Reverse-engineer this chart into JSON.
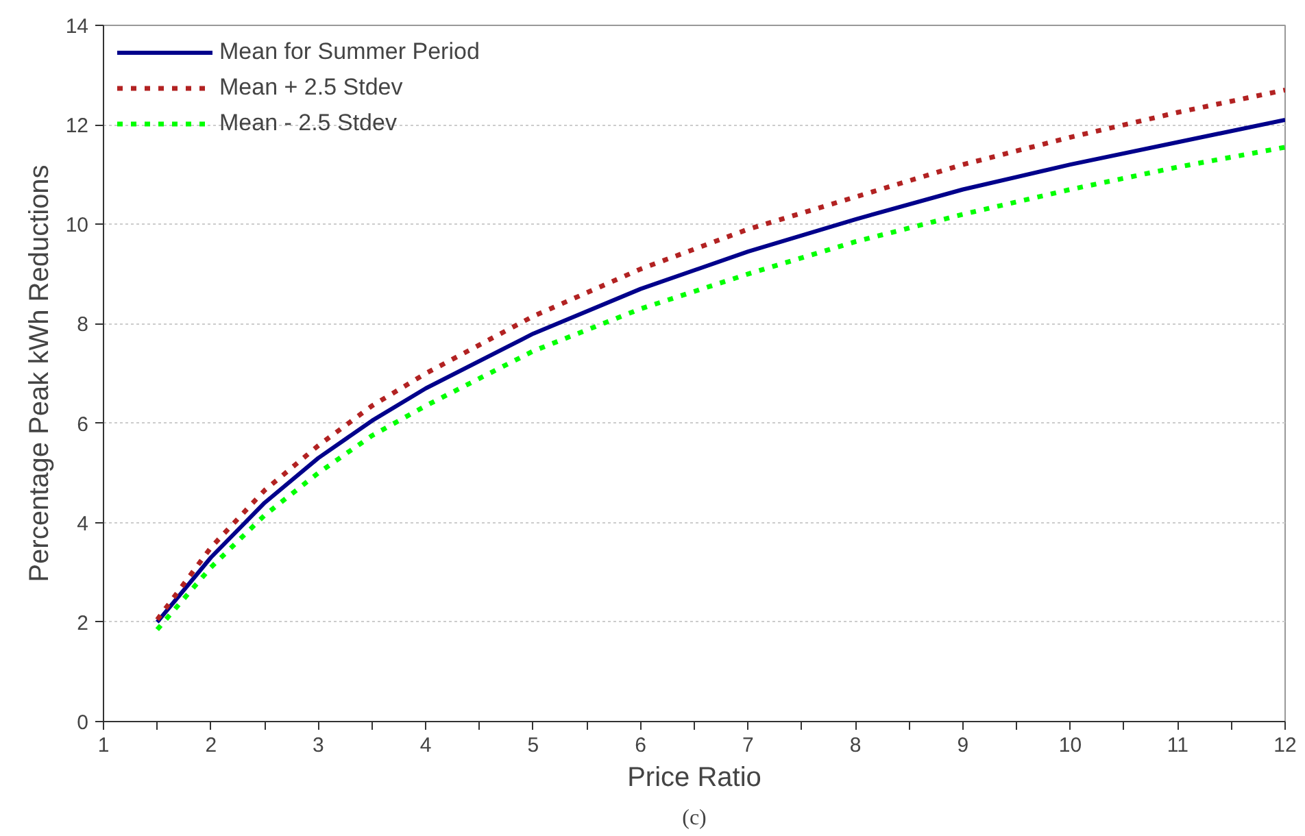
{
  "chart_data": {
    "type": "line",
    "xlabel": "Price Ratio",
    "ylabel": "Percentage Peak kWh Reductions",
    "annotations": [
      "(c)"
    ],
    "x": [
      1.5,
      2,
      2.5,
      3,
      3.5,
      4,
      5,
      6,
      7,
      8,
      9,
      10,
      11,
      12
    ],
    "series": [
      {
        "name": "Mean for Summer Period",
        "color": "#00008b",
        "line_style": "solid",
        "values": [
          2.0,
          3.3,
          4.4,
          5.3,
          6.05,
          6.7,
          7.8,
          8.7,
          9.45,
          10.1,
          10.7,
          11.2,
          11.65,
          12.1
        ]
      },
      {
        "name": "Mean + 2.5 Stdev",
        "color": "#b22222",
        "line_style": "dotted",
        "values": [
          2.05,
          3.5,
          4.65,
          5.55,
          6.35,
          7.0,
          8.15,
          9.1,
          9.9,
          10.55,
          11.2,
          11.75,
          12.25,
          12.7
        ]
      },
      {
        "name": "Mean - 2.5 Stdev",
        "color": "#00ff00",
        "line_style": "dotted",
        "values": [
          1.85,
          3.1,
          4.15,
          5.0,
          5.75,
          6.35,
          7.45,
          8.3,
          9.0,
          9.65,
          10.2,
          10.7,
          11.15,
          11.55
        ]
      }
    ],
    "xlim": [
      1,
      12
    ],
    "ylim": [
      0,
      14
    ],
    "xticks": [
      1,
      {
        "value": 1.5,
        "label": null
      },
      2,
      {
        "value": 2.5,
        "label": null
      },
      3,
      {
        "value": 3.5,
        "label": null
      },
      4,
      {
        "value": 4.5,
        "label": null
      },
      5,
      {
        "value": 5.5,
        "label": null
      },
      6,
      {
        "value": 6.5,
        "label": null
      },
      7,
      {
        "value": 7.5,
        "label": null
      },
      8,
      {
        "value": 8.5,
        "label": null
      },
      9,
      {
        "value": 9.5,
        "label": null
      },
      10,
      {
        "value": 10.5,
        "label": null
      },
      11,
      {
        "value": 11.5,
        "label": null
      },
      12
    ],
    "yticks": [
      0,
      2,
      4,
      6,
      8,
      10,
      12,
      14
    ],
    "grid": "y",
    "legend": "top left",
    "marker": "none"
  }
}
